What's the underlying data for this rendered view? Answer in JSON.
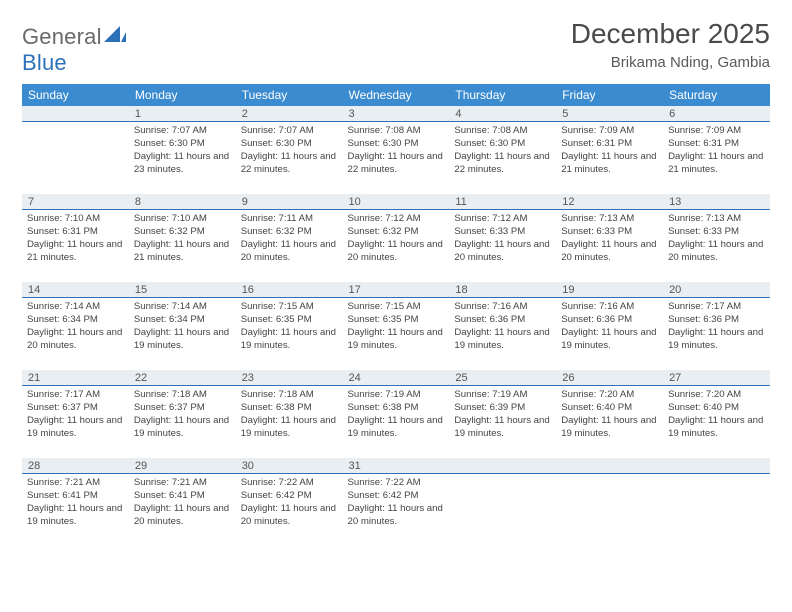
{
  "brand": {
    "text1": "General",
    "text2": "Blue"
  },
  "title": "December 2025",
  "location": "Brikama Nding, Gambia",
  "colors": {
    "header_bg": "#3b8bd0",
    "header_text": "#ffffff",
    "band_bg": "#e9eef2",
    "band_border": "#2d72b8",
    "body_text": "#444444"
  },
  "days_of_week": [
    "Sunday",
    "Monday",
    "Tuesday",
    "Wednesday",
    "Thursday",
    "Friday",
    "Saturday"
  ],
  "weeks": [
    [
      {
        "n": "",
        "sunrise": "",
        "sunset": "",
        "daylight": ""
      },
      {
        "n": "1",
        "sunrise": "Sunrise: 7:07 AM",
        "sunset": "Sunset: 6:30 PM",
        "daylight": "Daylight: 11 hours and 23 minutes."
      },
      {
        "n": "2",
        "sunrise": "Sunrise: 7:07 AM",
        "sunset": "Sunset: 6:30 PM",
        "daylight": "Daylight: 11 hours and 22 minutes."
      },
      {
        "n": "3",
        "sunrise": "Sunrise: 7:08 AM",
        "sunset": "Sunset: 6:30 PM",
        "daylight": "Daylight: 11 hours and 22 minutes."
      },
      {
        "n": "4",
        "sunrise": "Sunrise: 7:08 AM",
        "sunset": "Sunset: 6:30 PM",
        "daylight": "Daylight: 11 hours and 22 minutes."
      },
      {
        "n": "5",
        "sunrise": "Sunrise: 7:09 AM",
        "sunset": "Sunset: 6:31 PM",
        "daylight": "Daylight: 11 hours and 21 minutes."
      },
      {
        "n": "6",
        "sunrise": "Sunrise: 7:09 AM",
        "sunset": "Sunset: 6:31 PM",
        "daylight": "Daylight: 11 hours and 21 minutes."
      }
    ],
    [
      {
        "n": "7",
        "sunrise": "Sunrise: 7:10 AM",
        "sunset": "Sunset: 6:31 PM",
        "daylight": "Daylight: 11 hours and 21 minutes."
      },
      {
        "n": "8",
        "sunrise": "Sunrise: 7:10 AM",
        "sunset": "Sunset: 6:32 PM",
        "daylight": "Daylight: 11 hours and 21 minutes."
      },
      {
        "n": "9",
        "sunrise": "Sunrise: 7:11 AM",
        "sunset": "Sunset: 6:32 PM",
        "daylight": "Daylight: 11 hours and 20 minutes."
      },
      {
        "n": "10",
        "sunrise": "Sunrise: 7:12 AM",
        "sunset": "Sunset: 6:32 PM",
        "daylight": "Daylight: 11 hours and 20 minutes."
      },
      {
        "n": "11",
        "sunrise": "Sunrise: 7:12 AM",
        "sunset": "Sunset: 6:33 PM",
        "daylight": "Daylight: 11 hours and 20 minutes."
      },
      {
        "n": "12",
        "sunrise": "Sunrise: 7:13 AM",
        "sunset": "Sunset: 6:33 PM",
        "daylight": "Daylight: 11 hours and 20 minutes."
      },
      {
        "n": "13",
        "sunrise": "Sunrise: 7:13 AM",
        "sunset": "Sunset: 6:33 PM",
        "daylight": "Daylight: 11 hours and 20 minutes."
      }
    ],
    [
      {
        "n": "14",
        "sunrise": "Sunrise: 7:14 AM",
        "sunset": "Sunset: 6:34 PM",
        "daylight": "Daylight: 11 hours and 20 minutes."
      },
      {
        "n": "15",
        "sunrise": "Sunrise: 7:14 AM",
        "sunset": "Sunset: 6:34 PM",
        "daylight": "Daylight: 11 hours and 19 minutes."
      },
      {
        "n": "16",
        "sunrise": "Sunrise: 7:15 AM",
        "sunset": "Sunset: 6:35 PM",
        "daylight": "Daylight: 11 hours and 19 minutes."
      },
      {
        "n": "17",
        "sunrise": "Sunrise: 7:15 AM",
        "sunset": "Sunset: 6:35 PM",
        "daylight": "Daylight: 11 hours and 19 minutes."
      },
      {
        "n": "18",
        "sunrise": "Sunrise: 7:16 AM",
        "sunset": "Sunset: 6:36 PM",
        "daylight": "Daylight: 11 hours and 19 minutes."
      },
      {
        "n": "19",
        "sunrise": "Sunrise: 7:16 AM",
        "sunset": "Sunset: 6:36 PM",
        "daylight": "Daylight: 11 hours and 19 minutes."
      },
      {
        "n": "20",
        "sunrise": "Sunrise: 7:17 AM",
        "sunset": "Sunset: 6:36 PM",
        "daylight": "Daylight: 11 hours and 19 minutes."
      }
    ],
    [
      {
        "n": "21",
        "sunrise": "Sunrise: 7:17 AM",
        "sunset": "Sunset: 6:37 PM",
        "daylight": "Daylight: 11 hours and 19 minutes."
      },
      {
        "n": "22",
        "sunrise": "Sunrise: 7:18 AM",
        "sunset": "Sunset: 6:37 PM",
        "daylight": "Daylight: 11 hours and 19 minutes."
      },
      {
        "n": "23",
        "sunrise": "Sunrise: 7:18 AM",
        "sunset": "Sunset: 6:38 PM",
        "daylight": "Daylight: 11 hours and 19 minutes."
      },
      {
        "n": "24",
        "sunrise": "Sunrise: 7:19 AM",
        "sunset": "Sunset: 6:38 PM",
        "daylight": "Daylight: 11 hours and 19 minutes."
      },
      {
        "n": "25",
        "sunrise": "Sunrise: 7:19 AM",
        "sunset": "Sunset: 6:39 PM",
        "daylight": "Daylight: 11 hours and 19 minutes."
      },
      {
        "n": "26",
        "sunrise": "Sunrise: 7:20 AM",
        "sunset": "Sunset: 6:40 PM",
        "daylight": "Daylight: 11 hours and 19 minutes."
      },
      {
        "n": "27",
        "sunrise": "Sunrise: 7:20 AM",
        "sunset": "Sunset: 6:40 PM",
        "daylight": "Daylight: 11 hours and 19 minutes."
      }
    ],
    [
      {
        "n": "28",
        "sunrise": "Sunrise: 7:21 AM",
        "sunset": "Sunset: 6:41 PM",
        "daylight": "Daylight: 11 hours and 19 minutes."
      },
      {
        "n": "29",
        "sunrise": "Sunrise: 7:21 AM",
        "sunset": "Sunset: 6:41 PM",
        "daylight": "Daylight: 11 hours and 20 minutes."
      },
      {
        "n": "30",
        "sunrise": "Sunrise: 7:22 AM",
        "sunset": "Sunset: 6:42 PM",
        "daylight": "Daylight: 11 hours and 20 minutes."
      },
      {
        "n": "31",
        "sunrise": "Sunrise: 7:22 AM",
        "sunset": "Sunset: 6:42 PM",
        "daylight": "Daylight: 11 hours and 20 minutes."
      },
      {
        "n": "",
        "sunrise": "",
        "sunset": "",
        "daylight": ""
      },
      {
        "n": "",
        "sunrise": "",
        "sunset": "",
        "daylight": ""
      },
      {
        "n": "",
        "sunrise": "",
        "sunset": "",
        "daylight": ""
      }
    ]
  ]
}
